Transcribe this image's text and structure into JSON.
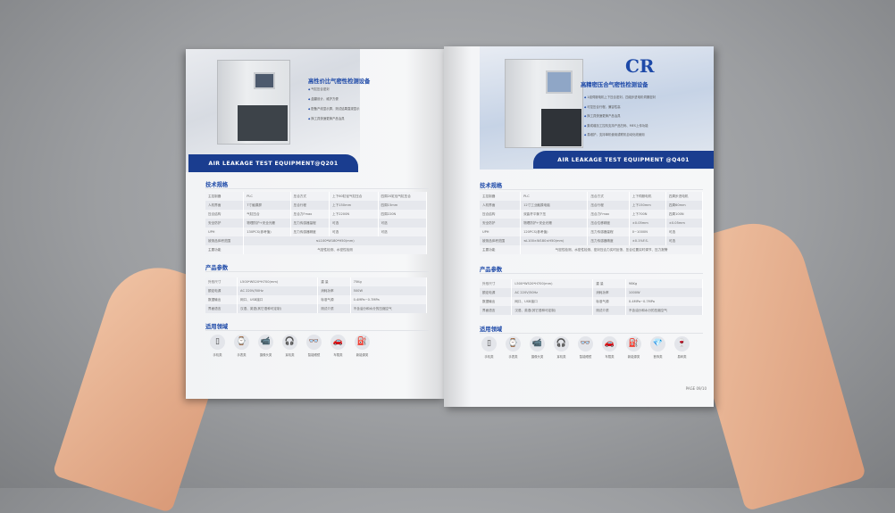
{
  "left_page": {
    "hero_title": "高性价比气密性检测设备",
    "bullets": [
      "气缸压合密封",
      "盒翻设计，维护方便",
      "配备产线显示屏，测试结果直观显示",
      "换工具快速更换产品治具"
    ],
    "banner": "AIR LEAKAGE TEST EQUIPMENT@Q201",
    "specs_title": "技术规格",
    "specs": [
      [
        "主控制器",
        "PLC",
        "压合方式",
        "上下60缸径气缸压合",
        "四周20缸径气缸压合"
      ],
      [
        "人机界面",
        "7寸触摸屏",
        "压合行程",
        "上下150mm",
        "四周15mm"
      ],
      [
        "压合结构",
        "气缸压合",
        "压合力Fmax",
        "上下2200N",
        "四周220N"
      ],
      [
        "安全防护",
        "物理防护+安全光栅",
        "压力传感器量程",
        "可选",
        "可选"
      ],
      [
        "UPH",
        "130PCS(参考值)",
        "压力传感器精度",
        "可选",
        "可选"
      ],
      [
        "被测品体积范围",
        "≤L100*W180*H50(mm)"
      ],
      [
        "主要功能",
        "气密性检测、水密性检测"
      ]
    ],
    "params_title": "产品参数",
    "params": [
      [
        "外形尺寸",
        "L500*W520*H700(mm)",
        "重 量",
        "75Kg"
      ],
      [
        "额定电源",
        "AC 220V/50Hz",
        "消耗功率",
        "500W"
      ],
      [
        "数据输出",
        "网口、USB接口",
        "标准气源",
        "0.4MPa~0.7MPa"
      ],
      [
        "界面语言",
        "汉语、英语(其它语种可定制)",
        "测试介质",
        "不含油分和水分的压缩空气"
      ]
    ],
    "apps_title": "适用领域",
    "apps": [
      {
        "label": "手机类",
        "icon": "phone-icon"
      },
      {
        "label": "手表类",
        "icon": "watch-icon"
      },
      {
        "label": "摄像头类",
        "icon": "camera-icon"
      },
      {
        "label": "耳机类",
        "icon": "headphones-icon"
      },
      {
        "label": "智能眼镜",
        "icon": "glasses-icon"
      },
      {
        "label": "车载类",
        "icon": "car-icon"
      },
      {
        "label": "新能源类",
        "icon": "charger-icon"
      }
    ]
  },
  "right_page": {
    "logo": "CR",
    "hero_title": "高精密压合气密性检测设备",
    "bullets": [
      "1组伺服电机上下压合密封，四组步进电机伺服密封",
      "可控压合行程，兼容性高",
      "换工具快速更换产品治具",
      "集成增加工控机支持产品扫码、MES上传功能",
      "易维护，支持单机使用或联机自动化线使用"
    ],
    "banner": "AIR LEAKAGE TEST EQUIPMENT @Q401",
    "specs_title": "技术规格",
    "specs": [
      [
        "主控制器",
        "PLC",
        "压合方式",
        "上下伺服电机",
        "四周步进电机"
      ],
      [
        "人机界面",
        "12寸工业触摸电脑",
        "压合行程",
        "上下150mm",
        "四周60mm"
      ],
      [
        "压合结构",
        "双曲杆平衡下压",
        "压合力Fmax",
        "上下700N",
        "四周100N"
      ],
      [
        "安全防护",
        "物理防护+安全光栅",
        "压合位移精度",
        "±0.05mm",
        "±0.05mm"
      ],
      [
        "UPH",
        "120PCS(参考值)",
        "压力传感器量程",
        "0~1000N",
        "可选"
      ],
      [
        "被测品体积范围",
        "≤L100×W180×H50(mm)",
        "压力传感器精度",
        "±0.1%F.S.",
        "可选"
      ],
      [
        "主要功能",
        "气密性检测、水密性检测、密封压合力实时反馈、压合位置实时调节、压力报警"
      ]
    ],
    "params_title": "产品参数",
    "params": [
      [
        "外形尺寸",
        "L500*W520*H700(mm)",
        "重 量",
        "98Kg"
      ],
      [
        "额定电源",
        "AC 220V/50Hz",
        "消耗功率",
        "1000W"
      ],
      [
        "数据输出",
        "网口、USB接口",
        "标准气源",
        "0.4MPa~0.7MPa"
      ],
      [
        "界面语言",
        "汉语、英语(其它语种可定制)",
        "测试介质",
        "不含油分和水分的压缩空气"
      ]
    ],
    "apps_title": "适用领域",
    "apps": [
      {
        "label": "手机类",
        "icon": "phone-icon"
      },
      {
        "label": "手表类",
        "icon": "watch-icon"
      },
      {
        "label": "摄像头类",
        "icon": "camera-icon"
      },
      {
        "label": "耳机类",
        "icon": "headphones-icon"
      },
      {
        "label": "智能眼镜",
        "icon": "glasses-icon"
      },
      {
        "label": "车载类",
        "icon": "car-icon"
      },
      {
        "label": "新能源类",
        "icon": "charger-icon"
      },
      {
        "label": "首饰类",
        "icon": "jewelry-icon"
      },
      {
        "label": "易碎类",
        "icon": "fragile-icon"
      }
    ],
    "page_number": "PAGE 09/10"
  },
  "colors": {
    "brand": "#1d49a8",
    "banner": "#1a3d8f"
  }
}
